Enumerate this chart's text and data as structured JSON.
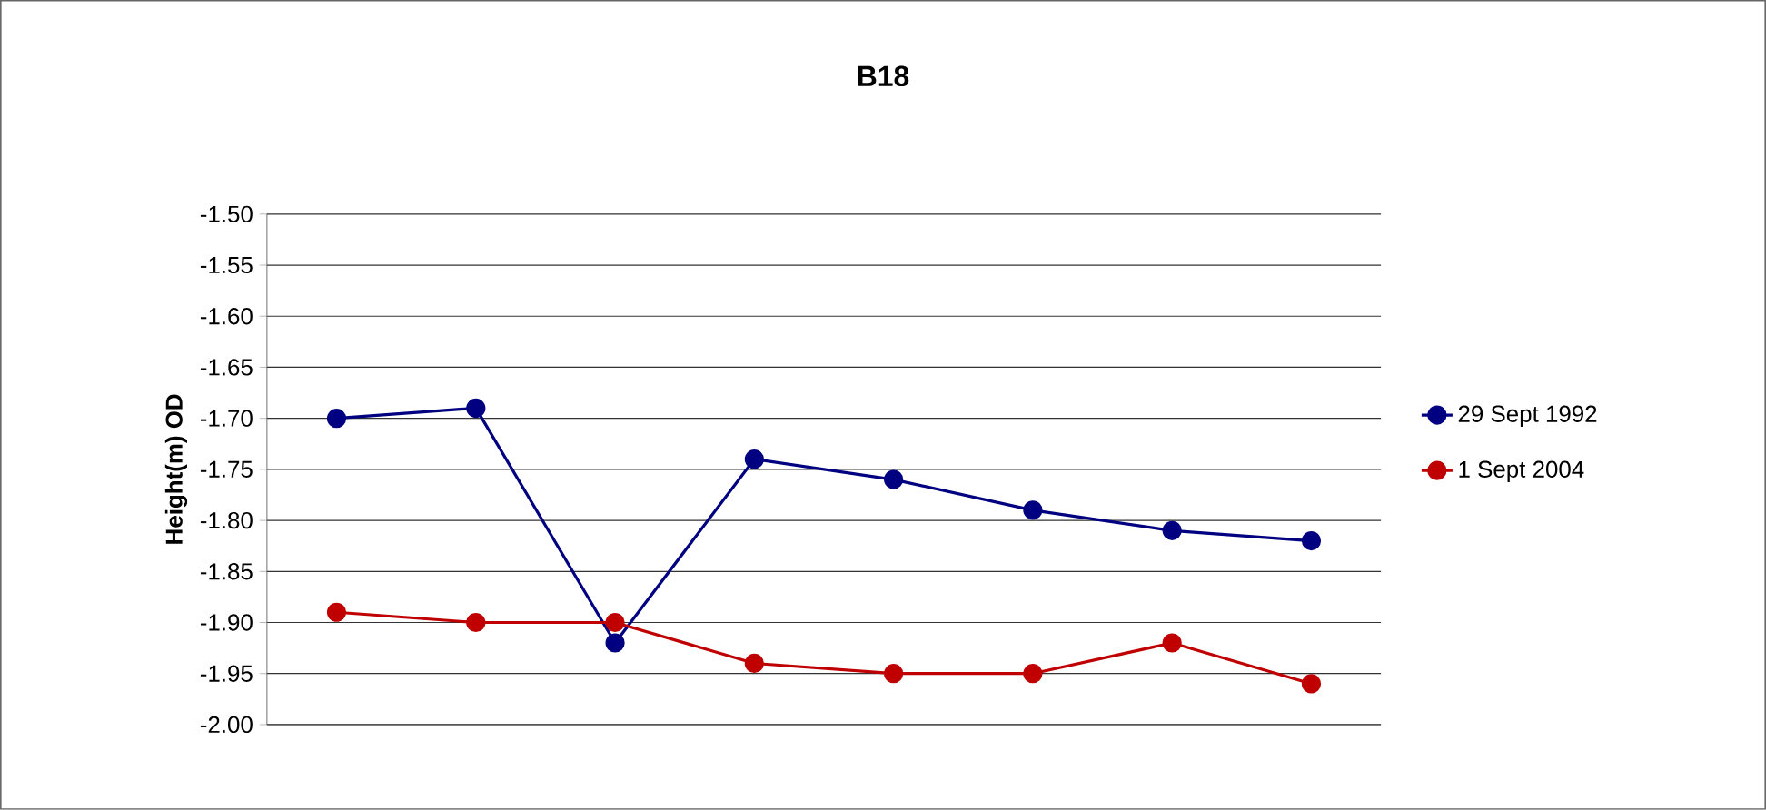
{
  "chart_data": {
    "type": "line",
    "title": "B18",
    "ylabel": "Height(m) OD",
    "categories": [
      null,
      null,
      null,
      null,
      null,
      null,
      null,
      null
    ],
    "series": [
      {
        "name": "29 Sept 1992",
        "color": "#000080",
        "values": [
          -1.7,
          -1.69,
          -1.92,
          -1.74,
          -1.76,
          -1.79,
          -1.81,
          -1.82
        ]
      },
      {
        "name": "1 Sept   2004",
        "color": "#c00000",
        "values": [
          -1.89,
          -1.9,
          -1.9,
          -1.94,
          -1.95,
          -1.95,
          -1.92,
          -1.96
        ]
      }
    ],
    "ylim": [
      -2.0,
      -1.5
    ],
    "yticks": [
      {
        "value": -2.0,
        "label": "-2.00"
      },
      {
        "value": -1.95,
        "label": "-1.95"
      },
      {
        "value": -1.9,
        "label": "-1.90"
      },
      {
        "value": -1.85,
        "label": "-1.85"
      },
      {
        "value": -1.8,
        "label": "-1.80"
      },
      {
        "value": -1.75,
        "label": "-1.75"
      },
      {
        "value": -1.7,
        "label": "-1.70"
      },
      {
        "value": -1.65,
        "label": "-1.65"
      },
      {
        "value": -1.6,
        "label": "-1.60"
      },
      {
        "value": -1.55,
        "label": "-1.55"
      },
      {
        "value": -1.5,
        "label": "-1.50"
      }
    ],
    "grid": "y",
    "legend": "right",
    "marker": "circle",
    "line_style": "solid"
  }
}
